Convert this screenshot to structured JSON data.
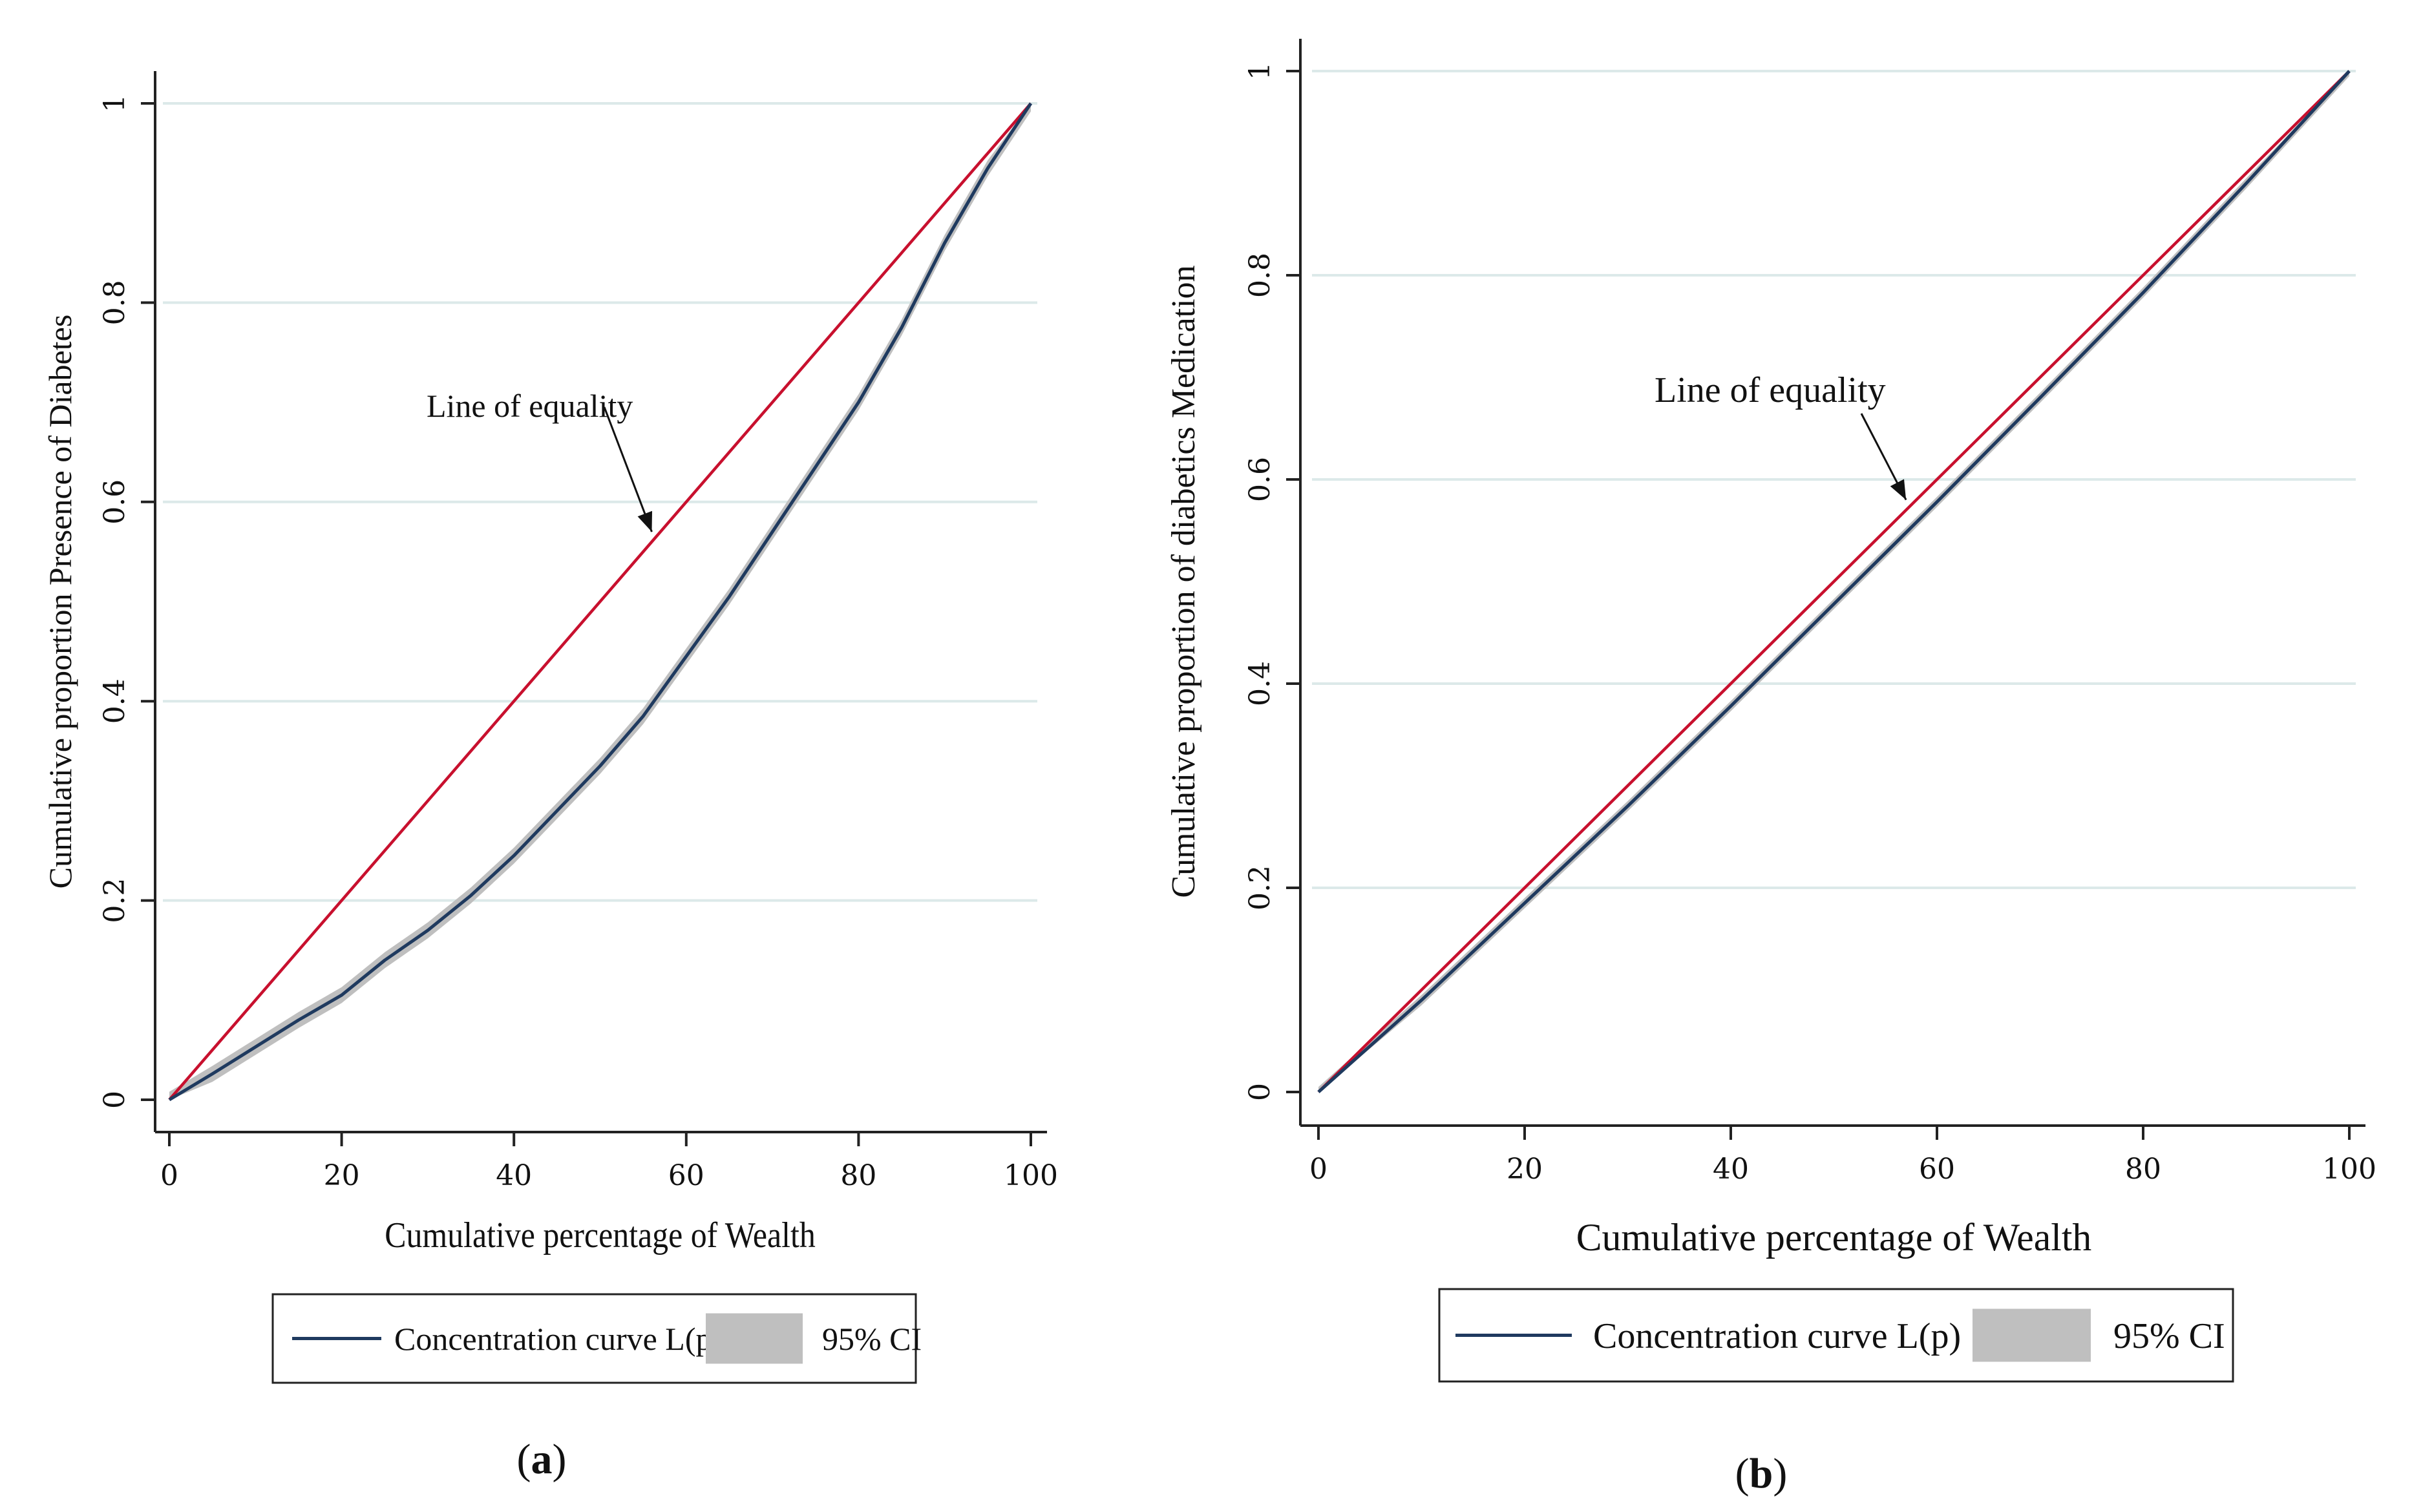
{
  "colors": {
    "curve": "#1f3a5f",
    "equality": "#c8102e",
    "ci_band": "#bfbfbf",
    "gridline": "#dce9e9",
    "axis": "#222222"
  },
  "chart_data": [
    {
      "panel": "a",
      "type": "line",
      "caption_open": "(",
      "caption_letter": "a",
      "caption_close": ")",
      "title": "",
      "xlabel": "Cumulative percentage of Wealth",
      "ylabel": "Cumulative proportion Presence of Diabetes",
      "xlim": [
        0,
        100
      ],
      "ylim": [
        0,
        1
      ],
      "x_ticks": [
        0,
        20,
        40,
        60,
        80,
        100
      ],
      "x_tick_labels": [
        "0",
        "20",
        "40",
        "60",
        "80",
        "100"
      ],
      "y_ticks": [
        0,
        0.2,
        0.4,
        0.6,
        0.8,
        1
      ],
      "y_tick_labels": [
        "0",
        "0.2",
        "0.4",
        "0.6",
        "0.8",
        "1"
      ],
      "grid": "horizontal",
      "annotation": {
        "text": "Line of equality",
        "arrow_to": [
          56,
          0.57
        ]
      },
      "legend": {
        "placement": "bottom",
        "items": [
          {
            "label": "Concentration curve L(p)",
            "kind": "line"
          },
          {
            "label": "95% CI",
            "kind": "band"
          }
        ]
      },
      "series": [
        {
          "name": "Line of equality",
          "x": [
            0,
            100
          ],
          "y": [
            0,
            1
          ]
        },
        {
          "name": "Concentration curve L(p)",
          "x": [
            0,
            5,
            10,
            15,
            20,
            25,
            30,
            35,
            40,
            45,
            50,
            55,
            60,
            65,
            70,
            75,
            80,
            85,
            90,
            95,
            100
          ],
          "y": [
            0,
            0.026,
            0.053,
            0.08,
            0.105,
            0.14,
            0.17,
            0.205,
            0.245,
            0.29,
            0.335,
            0.385,
            0.445,
            0.505,
            0.57,
            0.635,
            0.7,
            0.775,
            0.86,
            0.935,
            1.0
          ],
          "ci_halfwidth": 0.008
        }
      ]
    },
    {
      "panel": "b",
      "type": "line",
      "caption_open": "(",
      "caption_letter": "b",
      "caption_close": ")",
      "title": "",
      "xlabel": "Cumulative percentage of Wealth",
      "ylabel": "Cumulative proportion of diabetics Medication",
      "xlim": [
        0,
        100
      ],
      "ylim": [
        0,
        1
      ],
      "x_ticks": [
        0,
        20,
        40,
        60,
        80,
        100
      ],
      "x_tick_labels": [
        "0",
        "20",
        "40",
        "60",
        "80",
        "100"
      ],
      "y_ticks": [
        0,
        0.2,
        0.4,
        0.6,
        0.8,
        1
      ],
      "y_tick_labels": [
        "0",
        "0.2",
        "0.4",
        "0.6",
        "0.8",
        "1"
      ],
      "grid": "horizontal",
      "annotation": {
        "text": "Line of equality",
        "arrow_to": [
          57,
          0.58
        ]
      },
      "legend": {
        "placement": "bottom",
        "items": [
          {
            "label": "Concentration curve L(p)",
            "kind": "line"
          },
          {
            "label": "95% CI",
            "kind": "band"
          }
        ]
      },
      "series": [
        {
          "name": "Line of equality",
          "x": [
            0,
            100
          ],
          "y": [
            0,
            1
          ]
        },
        {
          "name": "Concentration curve L(p)",
          "x": [
            0,
            10,
            20,
            30,
            40,
            50,
            60,
            70,
            80,
            90,
            100
          ],
          "y": [
            0,
            0.09,
            0.185,
            0.28,
            0.378,
            0.478,
            0.578,
            0.68,
            0.783,
            0.89,
            1.0
          ],
          "ci_halfwidth": 0.005
        }
      ]
    }
  ]
}
